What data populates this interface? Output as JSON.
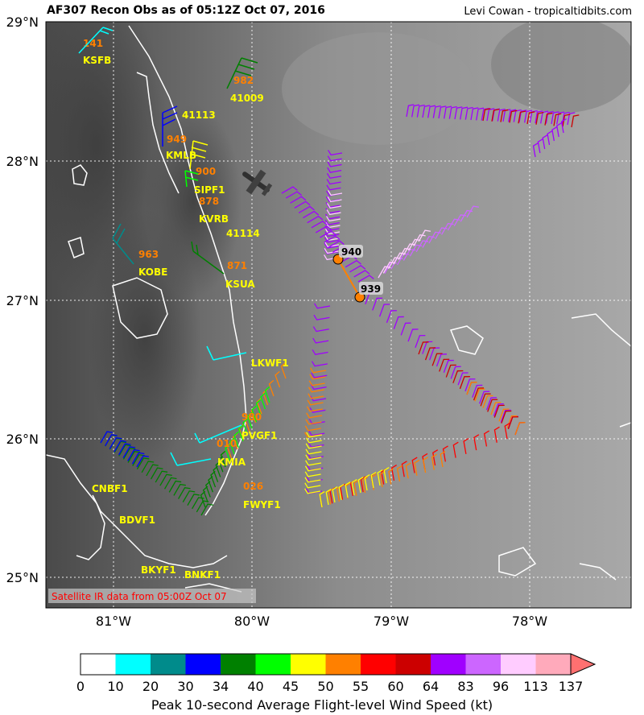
{
  "header": {
    "title": "AF307 Recon Obs as of 05:12Z Oct 07, 2016",
    "credit": "Levi Cowan - tropicaltidbits.com"
  },
  "map": {
    "lat_labels": [
      "29°N",
      "28°N",
      "27°N",
      "26°N",
      "25°N"
    ],
    "lon_labels": [
      "81°W",
      "80°W",
      "79°W",
      "78°W"
    ],
    "satellite_note": "Satellite IR data from 05:00Z Oct 07",
    "stations": [
      {
        "id": "KSFB",
        "pressure": "141"
      },
      {
        "id": "41009",
        "pressure": "982"
      },
      {
        "id": "41113",
        "pressure": ""
      },
      {
        "id": "KMLB",
        "pressure": "949"
      },
      {
        "id": "SIPF1",
        "pressure": "900"
      },
      {
        "id": "KVRB",
        "pressure": "878"
      },
      {
        "id": "41114",
        "pressure": ""
      },
      {
        "id": "KOBE",
        "pressure": "963"
      },
      {
        "id": "KSUA",
        "pressure": "871"
      },
      {
        "id": "LKWF1",
        "pressure": ""
      },
      {
        "id": "PVGF1",
        "pressure": "980"
      },
      {
        "id": "KMIA",
        "pressure": "010"
      },
      {
        "id": "FWYF1",
        "pressure": "026"
      },
      {
        "id": "CNBF1",
        "pressure": ""
      },
      {
        "id": "BDVF1",
        "pressure": ""
      },
      {
        "id": "BKYF1",
        "pressure": ""
      },
      {
        "id": "BNKF1",
        "pressure": ""
      }
    ],
    "center_fixes": [
      {
        "label": "940"
      },
      {
        "label": "939"
      }
    ]
  },
  "colorbar": {
    "ticks": [
      "0",
      "10",
      "20",
      "30",
      "34",
      "40",
      "45",
      "50",
      "55",
      "60",
      "64",
      "83",
      "96",
      "113",
      "137"
    ],
    "colors": [
      "#ffffff",
      "#00ffff",
      "#008b8b",
      "#0000ff",
      "#008000",
      "#00ff00",
      "#ffff00",
      "#ff8000",
      "#ff0000",
      "#cc0000",
      "#a000ff",
      "#cc66ff",
      "#ffccff",
      "#ffaabb",
      "#ff7070"
    ],
    "title": "Peak 10-second Average Flight-level Wind Speed (kt)"
  }
}
